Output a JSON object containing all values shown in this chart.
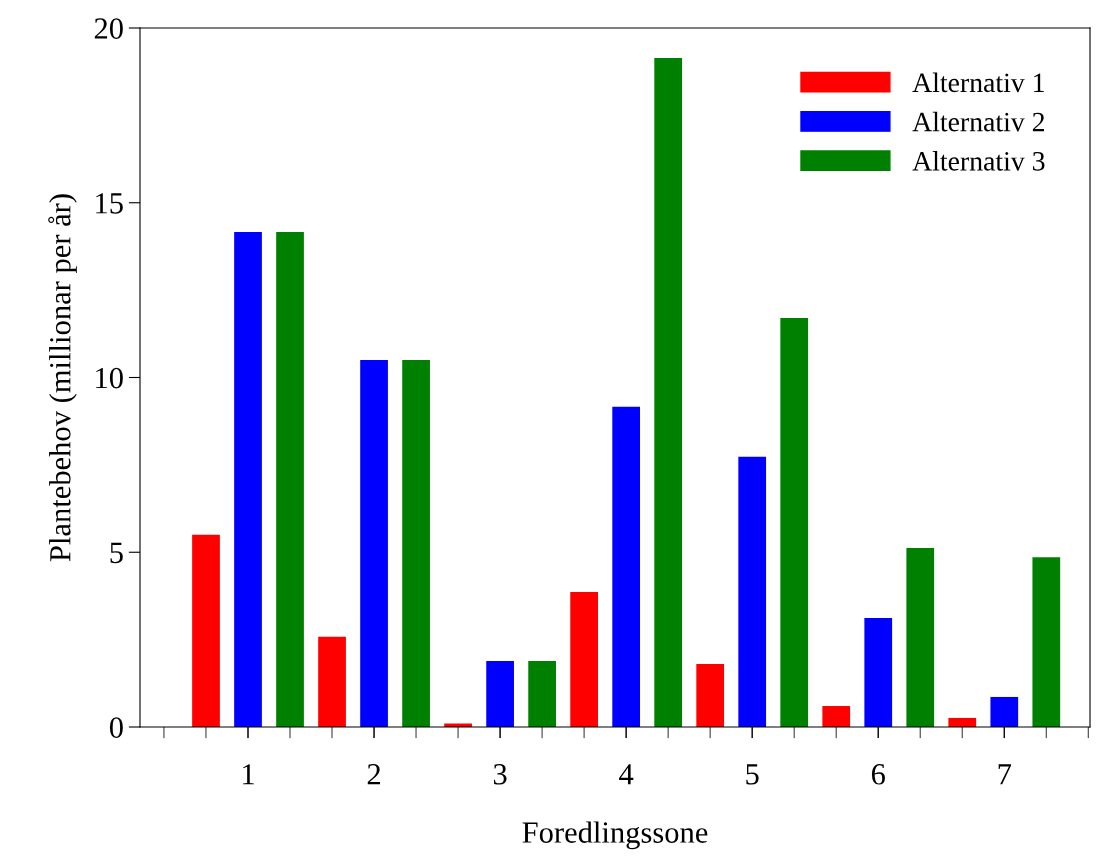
{
  "chart_data": {
    "type": "bar",
    "xlabel": "Foredlingssone",
    "ylabel": "Plantebehov (millionar per år)",
    "categories": [
      "1",
      "2",
      "3",
      "4",
      "5",
      "6",
      "7"
    ],
    "series": [
      {
        "name": "Alternativ 1",
        "color": "#ff0000",
        "values": [
          5.5,
          2.58,
          0.1,
          3.86,
          1.8,
          0.6,
          0.26
        ]
      },
      {
        "name": "Alternativ 2",
        "color": "#0000ff",
        "values": [
          14.16,
          10.5,
          1.89,
          9.16,
          7.73,
          3.12,
          0.86
        ]
      },
      {
        "name": "Alternativ 3",
        "color": "#008000",
        "values": [
          14.16,
          10.5,
          1.89,
          19.14,
          11.7,
          5.12,
          4.86
        ]
      }
    ],
    "ylim": [
      0,
      20
    ],
    "yticks": [
      0,
      5,
      10,
      15,
      20
    ],
    "grid": false,
    "legend": "top right"
  }
}
